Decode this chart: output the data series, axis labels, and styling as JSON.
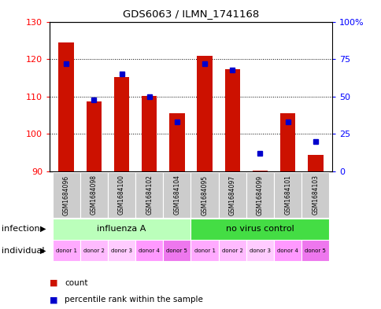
{
  "title": "GDS6063 / ILMN_1741168",
  "samples": [
    "GSM1684096",
    "GSM1684098",
    "GSM1684100",
    "GSM1684102",
    "GSM1684104",
    "GSM1684095",
    "GSM1684097",
    "GSM1684099",
    "GSM1684101",
    "GSM1684103"
  ],
  "counts": [
    124.5,
    108.7,
    115.3,
    110.2,
    105.5,
    120.8,
    117.4,
    90.2,
    105.5,
    94.5
  ],
  "percentiles": [
    72,
    48,
    65,
    50,
    33,
    72,
    68,
    12,
    33,
    20
  ],
  "ylim": [
    90,
    130
  ],
  "yticks": [
    90,
    100,
    110,
    120,
    130
  ],
  "right_yticks": [
    0,
    25,
    50,
    75,
    100
  ],
  "bar_color": "#cc1100",
  "dot_color": "#0000cc",
  "groups": [
    {
      "label": "influenza A",
      "start": 0,
      "end": 5,
      "color": "#bbffbb"
    },
    {
      "label": "no virus control",
      "start": 5,
      "end": 10,
      "color": "#44dd44"
    }
  ],
  "donors": [
    "donor 1",
    "donor 2",
    "donor 3",
    "donor 4",
    "donor 5",
    "donor 1",
    "donor 2",
    "donor 3",
    "donor 4",
    "donor 5"
  ],
  "infection_label": "infection",
  "individual_label": "individual",
  "legend_count_label": "count",
  "legend_percentile_label": "percentile rank within the sample",
  "bar_width": 0.55,
  "base": 90,
  "sample_box_color": "#cccccc",
  "donor_colors_cycle": [
    "#ffaaff",
    "#ffbbff",
    "#ffccff",
    "#ff99ff",
    "#ee77ee"
  ]
}
